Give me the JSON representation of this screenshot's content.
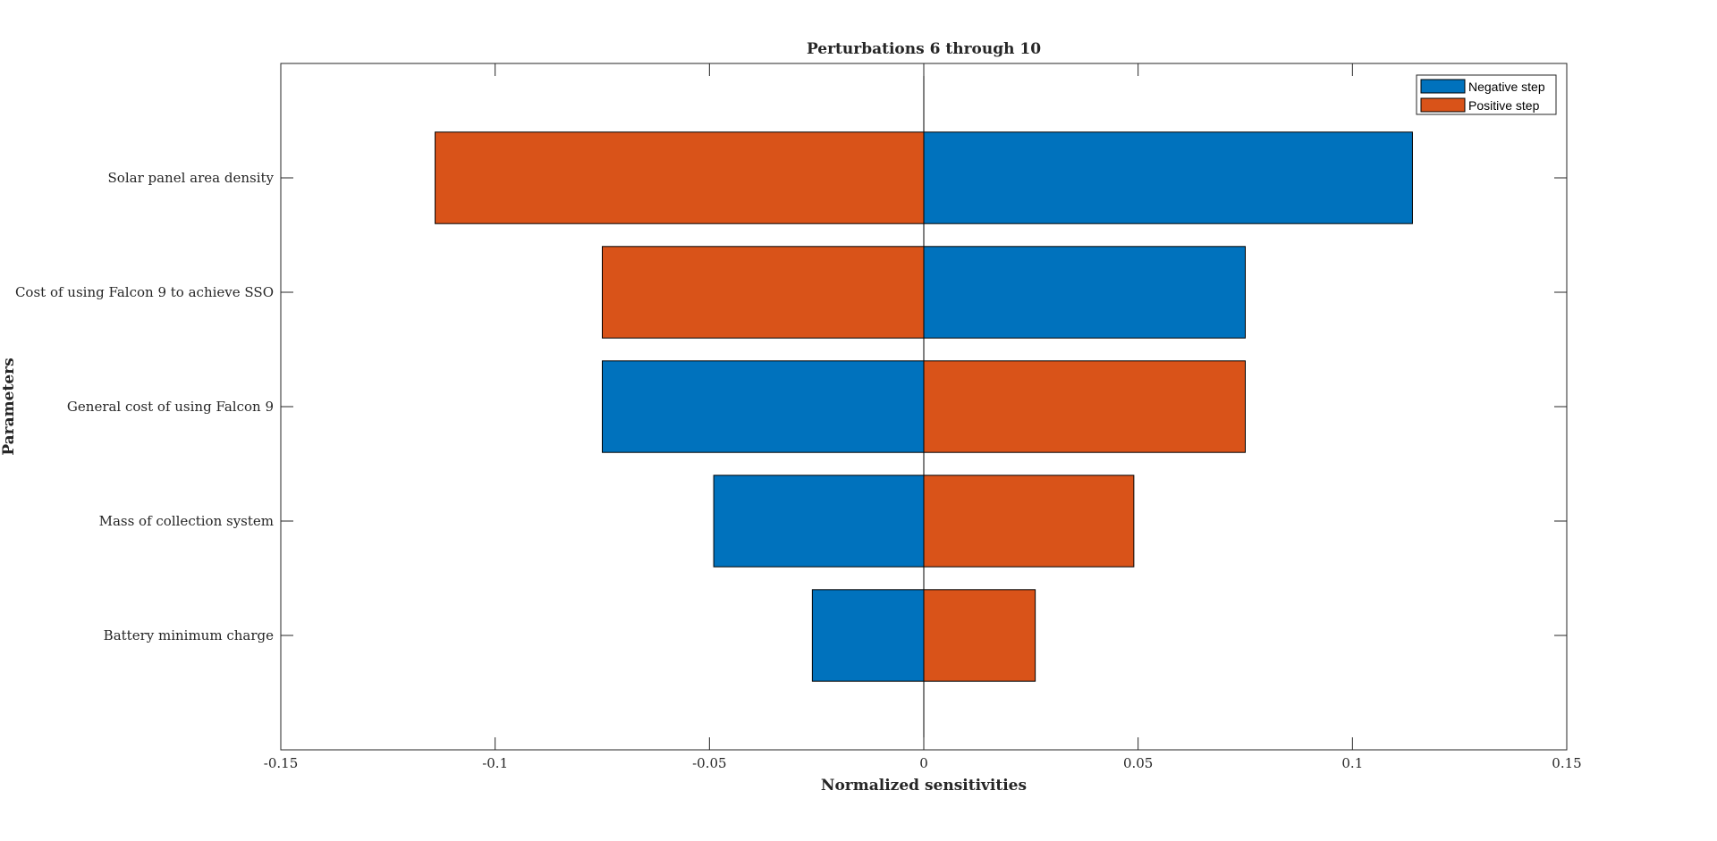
{
  "chart_data": {
    "type": "bar",
    "orientation": "horizontal",
    "title": "Perturbations 6 through 10",
    "xlabel": "Normalized sensitivities",
    "ylabel": "Parameters",
    "xlim": [
      -0.15,
      0.15
    ],
    "xticks": [
      -0.15,
      -0.1,
      -0.05,
      0,
      0.05,
      0.1,
      0.15
    ],
    "xtick_labels": [
      "-0.15",
      "-0.1",
      "-0.05",
      "0",
      "0.05",
      "0.1",
      "0.15"
    ],
    "categories": [
      "Solar panel area density",
      "Cost of using Falcon 9 to achieve SSO",
      "General cost of using Falcon 9",
      "Mass of collection system",
      "Battery minimum charge"
    ],
    "series": [
      {
        "name": "Negative step",
        "color": "#0072BD",
        "values": [
          0.114,
          0.075,
          -0.075,
          -0.049,
          -0.026
        ]
      },
      {
        "name": "Positive step",
        "color": "#D95319",
        "values": [
          -0.114,
          -0.075,
          0.075,
          0.049,
          0.026
        ]
      }
    ],
    "grid": false,
    "legend_position": "top-right"
  }
}
